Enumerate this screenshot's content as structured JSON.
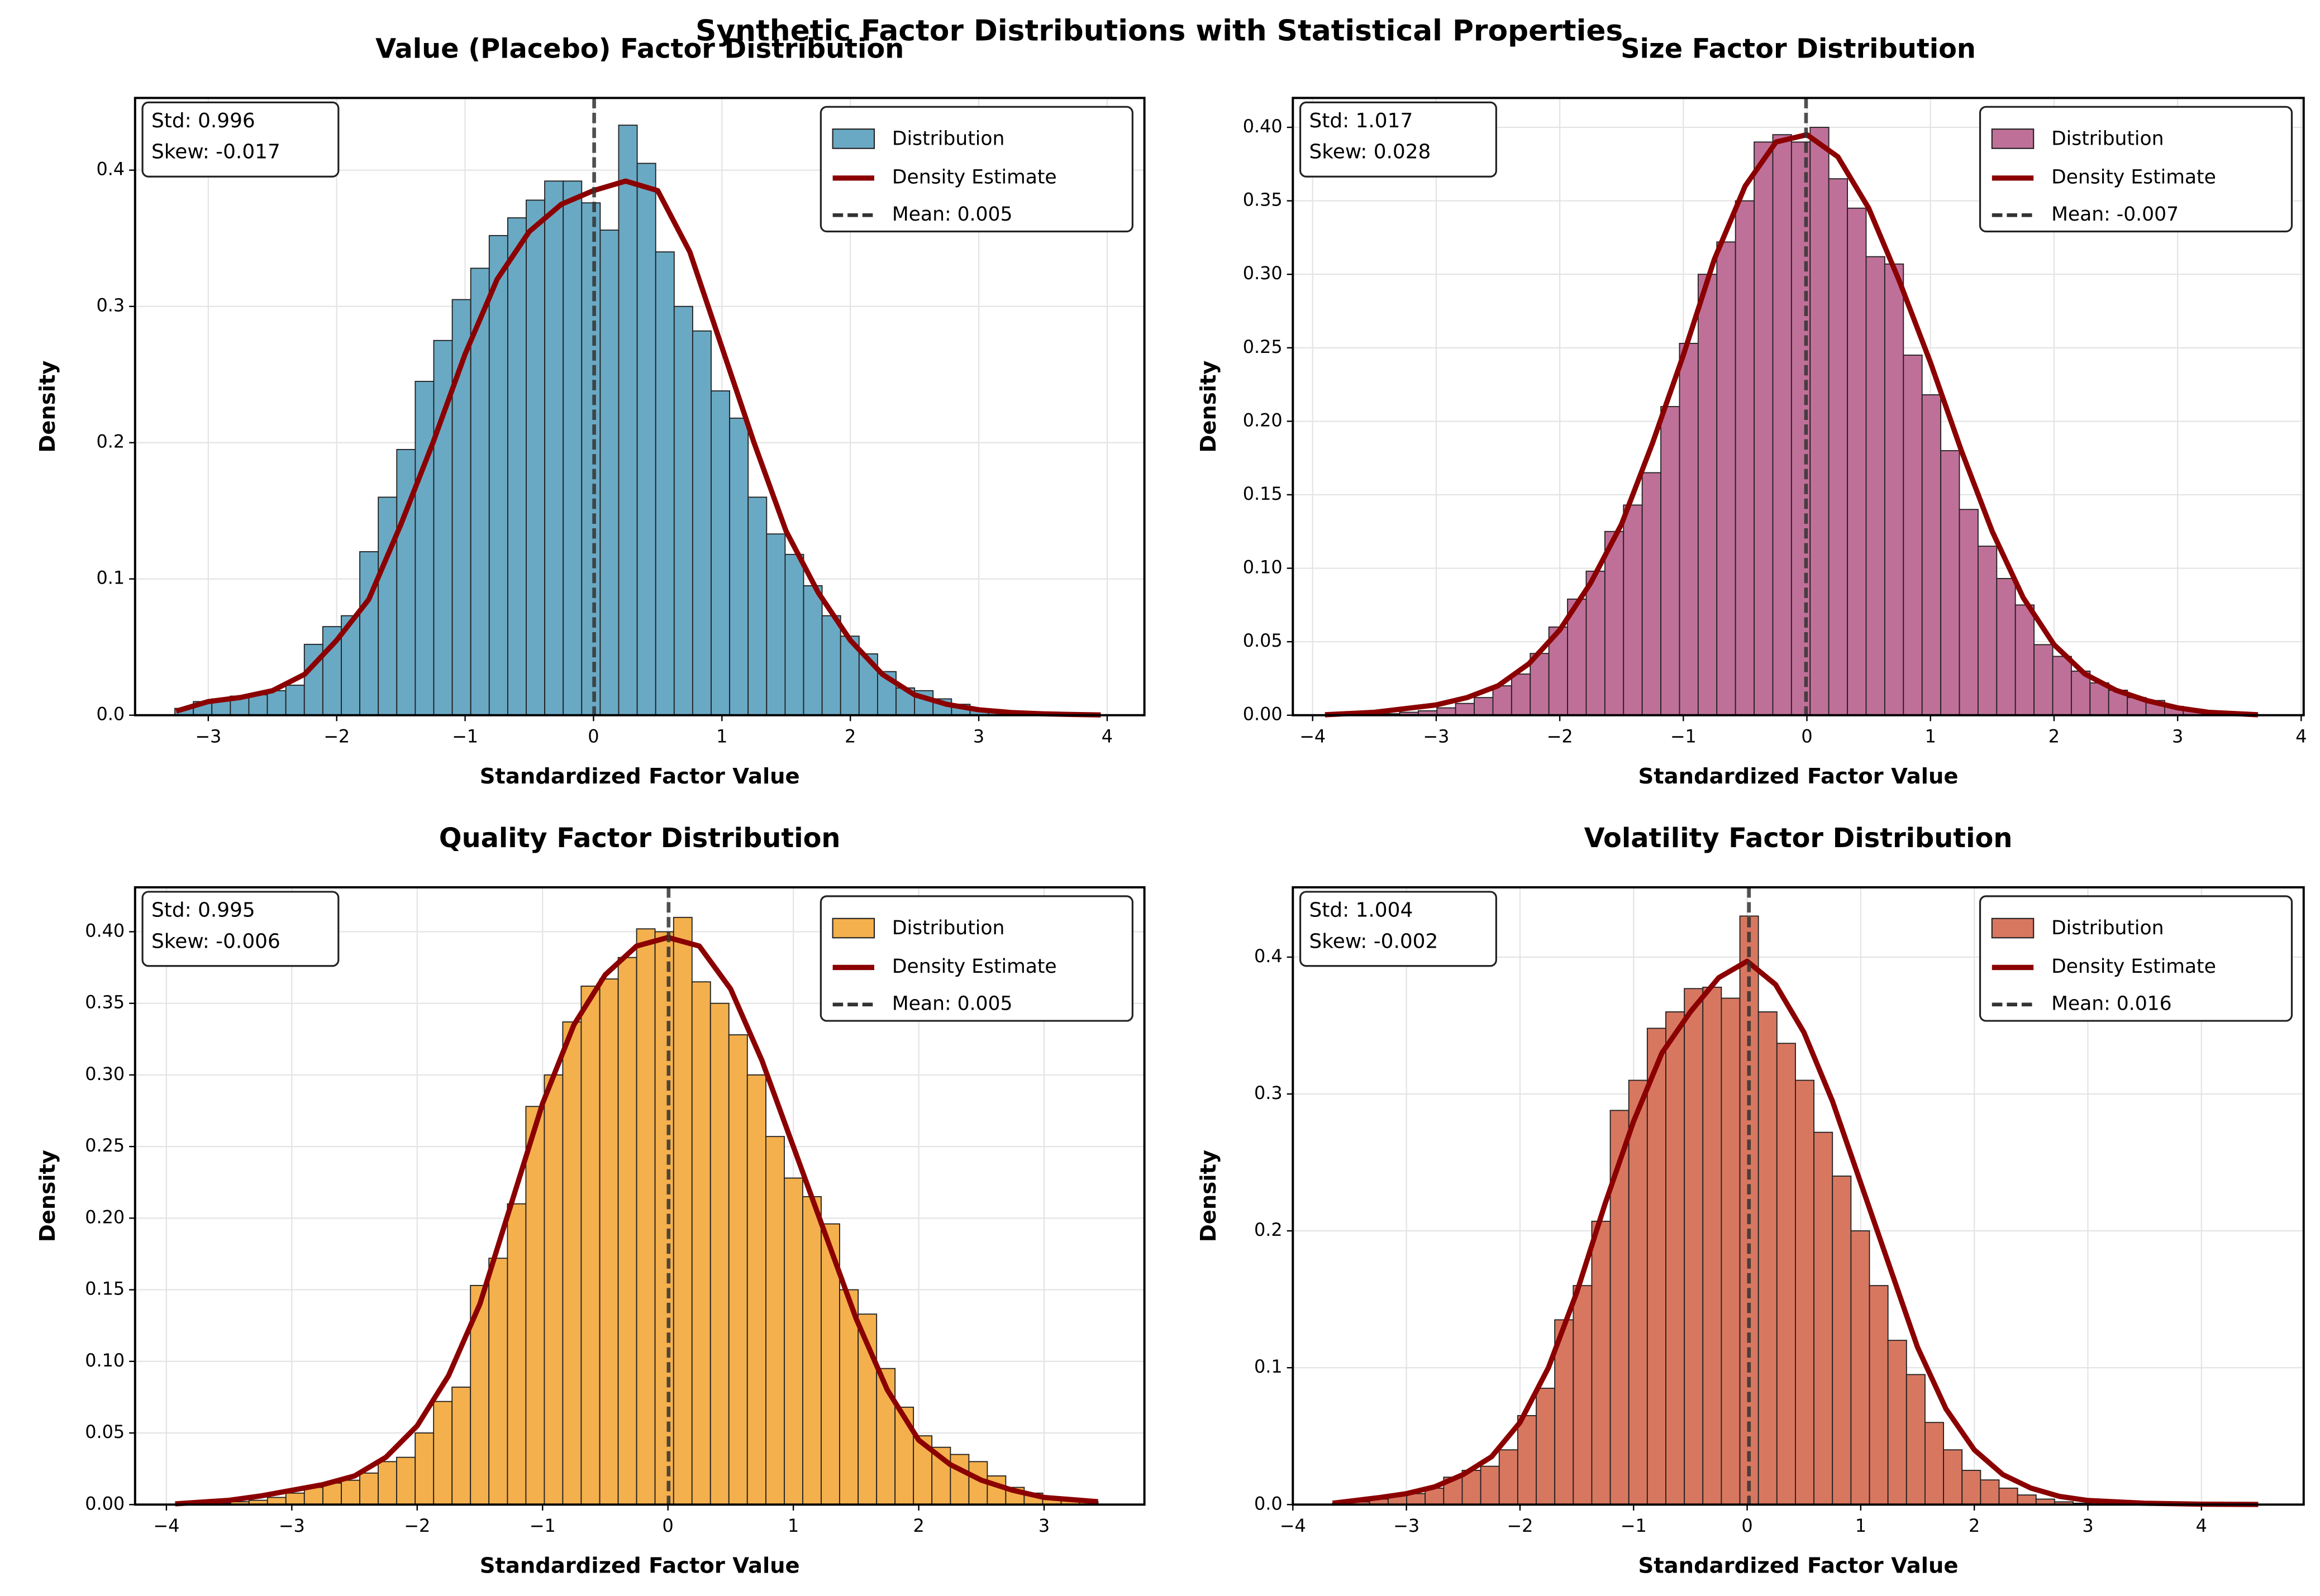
{
  "title": "Synthetic Factor Distributions with Statistical Properties",
  "chart_data": [
    {
      "type": "histogram",
      "title": "Value (Placebo) Factor Distribution",
      "xlabel": "Standardized Factor Value",
      "ylabel": "Density",
      "name": "Distribution",
      "color": "#6aa9c4",
      "bins": [
        -3.26,
        -3.116,
        -2.972,
        -2.828,
        -2.684,
        -2.54,
        -2.396,
        -2.252,
        -2.108,
        -1.964,
        -1.82,
        -1.676,
        -1.532,
        -1.388,
        -1.244,
        -1.1,
        -0.956,
        -0.812,
        -0.668,
        -0.524,
        -0.38,
        -0.236,
        -0.092,
        0.052,
        0.196,
        0.34,
        0.484,
        0.628,
        0.772,
        0.916,
        1.06,
        1.204,
        1.348,
        1.492,
        1.636,
        1.78,
        1.924,
        2.068,
        2.212,
        2.356,
        2.5,
        2.644,
        2.788,
        2.932,
        3.076,
        3.22,
        3.364,
        3.508,
        3.652,
        3.796,
        3.94
      ],
      "values": [
        0.005,
        0.01,
        0.012,
        0.014,
        0.015,
        0.018,
        0.022,
        0.052,
        0.065,
        0.073,
        0.12,
        0.16,
        0.195,
        0.245,
        0.275,
        0.305,
        0.328,
        0.352,
        0.365,
        0.378,
        0.392,
        0.392,
        0.376,
        0.356,
        0.433,
        0.405,
        0.34,
        0.3,
        0.282,
        0.238,
        0.218,
        0.16,
        0.133,
        0.118,
        0.095,
        0.073,
        0.058,
        0.045,
        0.032,
        0.02,
        0.018,
        0.012,
        0.008,
        0.004,
        0.002,
        0.001,
        0.001,
        0,
        0.001,
        0.001
      ],
      "density": {
        "name": "Density Estimate",
        "color": "#8b0000",
        "x": [
          -3.25,
          -3,
          -2.75,
          -2.5,
          -2.25,
          -2,
          -1.75,
          -1.5,
          -1.25,
          -1,
          -0.75,
          -0.5,
          -0.25,
          0,
          0.25,
          0.5,
          0.75,
          1,
          1.25,
          1.5,
          1.75,
          2,
          2.25,
          2.5,
          2.75,
          3,
          3.25,
          3.5,
          3.75,
          3.95
        ],
        "values": [
          0.003,
          0.01,
          0.013,
          0.018,
          0.03,
          0.055,
          0.085,
          0.14,
          0.2,
          0.265,
          0.32,
          0.355,
          0.375,
          0.385,
          0.392,
          0.385,
          0.34,
          0.27,
          0.2,
          0.135,
          0.09,
          0.055,
          0.03,
          0.015,
          0.008,
          0.004,
          0.002,
          0.001,
          0.0005,
          0.0002
        ]
      },
      "mean": {
        "value": 0.005,
        "label": "Mean: 0.005",
        "color": "#333333"
      },
      "stats": [
        "Std: 0.996",
        "Skew: -0.017"
      ],
      "xlim": [
        -3.57,
        4.29
      ],
      "ylim": [
        0,
        0.453
      ],
      "xticks": [
        {
          "value": -3,
          "label": "−3"
        },
        {
          "value": -2,
          "label": "−2"
        },
        {
          "value": -1,
          "label": "−1"
        },
        0,
        1,
        2,
        3,
        4
      ],
      "yticks": [
        {
          "value": 0,
          "label": "0.0"
        },
        0.1,
        0.2,
        0.3,
        0.4
      ],
      "grid": true,
      "legend": "upper right"
    },
    {
      "type": "histogram",
      "title": "Size Factor Distribution",
      "xlabel": "Standardized Factor Value",
      "ylabel": "Density",
      "name": "Distribution",
      "color": "#bf7099",
      "bins": [
        -3.9,
        -3.749,
        -3.598,
        -3.447,
        -3.296,
        -3.145,
        -2.994,
        -2.843,
        -2.692,
        -2.541,
        -2.39,
        -2.239,
        -2.088,
        -1.937,
        -1.786,
        -1.635,
        -1.484,
        -1.333,
        -1.182,
        -1.031,
        -0.88,
        -0.729,
        -0.578,
        -0.427,
        -0.276,
        -0.125,
        0.026,
        0.177,
        0.328,
        0.479,
        0.63,
        0.781,
        0.932,
        1.083,
        1.234,
        1.385,
        1.536,
        1.687,
        1.838,
        1.989,
        2.14,
        2.291,
        2.442,
        2.593,
        2.744,
        2.895,
        3.046,
        3.197,
        3.348,
        3.499,
        3.65
      ],
      "values": [
        0.0003,
        0.0005,
        0.001,
        0.001,
        0.002,
        0.003,
        0.005,
        0.008,
        0.012,
        0.02,
        0.028,
        0.042,
        0.06,
        0.079,
        0.098,
        0.125,
        0.143,
        0.165,
        0.21,
        0.253,
        0.3,
        0.322,
        0.35,
        0.39,
        0.395,
        0.39,
        0.4,
        0.365,
        0.345,
        0.312,
        0.307,
        0.245,
        0.218,
        0.18,
        0.14,
        0.115,
        0.093,
        0.075,
        0.048,
        0.04,
        0.03,
        0.022,
        0.017,
        0.012,
        0.01,
        0.006,
        0.003,
        0.002,
        0.001,
        0.0005
      ],
      "density": {
        "name": "Density Estimate",
        "color": "#8b0000",
        "x": [
          -3.9,
          -3.5,
          -3,
          -2.75,
          -2.5,
          -2.25,
          -2,
          -1.75,
          -1.5,
          -1.25,
          -1,
          -0.75,
          -0.5,
          -0.25,
          0,
          0.25,
          0.5,
          0.75,
          1,
          1.25,
          1.5,
          1.75,
          2,
          2.25,
          2.5,
          2.75,
          3,
          3.25,
          3.65
        ],
        "values": [
          0.0003,
          0.002,
          0.007,
          0.012,
          0.02,
          0.035,
          0.058,
          0.09,
          0.13,
          0.185,
          0.245,
          0.31,
          0.36,
          0.39,
          0.395,
          0.38,
          0.345,
          0.295,
          0.24,
          0.18,
          0.125,
          0.08,
          0.048,
          0.028,
          0.017,
          0.01,
          0.005,
          0.002,
          0.0003
        ]
      },
      "mean": {
        "value": -0.007,
        "label": "Mean: -0.007",
        "color": "#333333"
      },
      "stats": [
        "Std: 1.017",
        "Skew: 0.028"
      ],
      "xlim": [
        -4.16,
        4.02
      ],
      "ylim": [
        0,
        0.42
      ],
      "xticks": [
        {
          "value": -4,
          "label": "−4"
        },
        {
          "value": -3,
          "label": "−3"
        },
        {
          "value": -2,
          "label": "−2"
        },
        {
          "value": -1,
          "label": "−1"
        },
        0,
        1,
        2,
        3,
        4
      ],
      "yticks": [
        {
          "value": 0,
          "label": "0.00"
        },
        0.05,
        {
          "value": 0.1,
          "label": "0.10"
        },
        0.15,
        {
          "value": 0.2,
          "label": "0.20"
        },
        0.25,
        {
          "value": 0.3,
          "label": "0.30"
        },
        0.35,
        {
          "value": 0.4,
          "label": "0.40"
        }
      ],
      "grid": true,
      "legend": "upper right"
    },
    {
      "type": "histogram",
      "title": "Quality Factor Distribution",
      "xlabel": "Standardized Factor Value",
      "ylabel": "Density",
      "name": "Distribution",
      "color": "#f4b04d",
      "bins": [
        -3.93,
        -3.783,
        -3.636,
        -3.488,
        -3.341,
        -3.194,
        -3.047,
        -2.9,
        -2.752,
        -2.605,
        -2.458,
        -2.311,
        -2.164,
        -2.016,
        -1.869,
        -1.722,
        -1.575,
        -1.428,
        -1.28,
        -1.133,
        -0.986,
        -0.839,
        -0.692,
        -0.544,
        -0.397,
        -0.25,
        -0.103,
        0.045,
        0.192,
        0.339,
        0.486,
        0.633,
        0.781,
        0.928,
        1.075,
        1.222,
        1.369,
        1.517,
        1.664,
        1.811,
        1.958,
        2.105,
        2.253,
        2.4,
        2.547,
        2.694,
        2.841,
        2.989,
        3.136,
        3.283,
        3.43
      ],
      "values": [
        0.0005,
        0.001,
        0.001,
        0.002,
        0.003,
        0.005,
        0.008,
        0.012,
        0.015,
        0.017,
        0.022,
        0.03,
        0.033,
        0.05,
        0.072,
        0.082,
        0.153,
        0.172,
        0.21,
        0.278,
        0.3,
        0.337,
        0.362,
        0.367,
        0.382,
        0.402,
        0.4,
        0.41,
        0.365,
        0.35,
        0.328,
        0.3,
        0.257,
        0.228,
        0.215,
        0.196,
        0.15,
        0.133,
        0.095,
        0.068,
        0.048,
        0.04,
        0.035,
        0.03,
        0.02,
        0.012,
        0.008,
        0.005,
        0.003,
        0.002
      ],
      "density": {
        "name": "Density Estimate",
        "color": "#8b0000",
        "x": [
          -3.93,
          -3.5,
          -3.25,
          -3,
          -2.75,
          -2.5,
          -2.25,
          -2,
          -1.75,
          -1.5,
          -1.25,
          -1,
          -0.75,
          -0.5,
          -0.25,
          0,
          0.25,
          0.5,
          0.75,
          1,
          1.25,
          1.5,
          1.75,
          2,
          2.25,
          2.5,
          2.75,
          3,
          3.43
        ],
        "values": [
          0.0005,
          0.003,
          0.006,
          0.01,
          0.014,
          0.02,
          0.033,
          0.055,
          0.09,
          0.14,
          0.21,
          0.28,
          0.335,
          0.37,
          0.39,
          0.396,
          0.39,
          0.36,
          0.31,
          0.25,
          0.19,
          0.13,
          0.08,
          0.045,
          0.028,
          0.017,
          0.01,
          0.005,
          0.002
        ]
      },
      "mean": {
        "value": 0.005,
        "label": "Mean: 0.005",
        "color": "#333333"
      },
      "stats": [
        "Std: 0.995",
        "Skew: -0.006"
      ],
      "xlim": [
        -4.25,
        3.8
      ],
      "ylim": [
        0,
        0.431
      ],
      "xticks": [
        {
          "value": -4,
          "label": "−4"
        },
        {
          "value": -3,
          "label": "−3"
        },
        {
          "value": -2,
          "label": "−2"
        },
        {
          "value": -1,
          "label": "−1"
        },
        0,
        1,
        2,
        3
      ],
      "yticks": [
        {
          "value": 0,
          "label": "0.00"
        },
        0.05,
        {
          "value": 0.1,
          "label": "0.10"
        },
        0.15,
        {
          "value": 0.2,
          "label": "0.20"
        },
        0.25,
        {
          "value": 0.3,
          "label": "0.30"
        },
        0.35,
        {
          "value": 0.4,
          "label": "0.40"
        }
      ],
      "grid": true,
      "legend": "upper right"
    },
    {
      "type": "histogram",
      "title": "Volatility Factor Distribution",
      "xlabel": "Standardized Factor Value",
      "ylabel": "Density",
      "name": "Distribution",
      "color": "#d87760",
      "bins": [
        -3.65,
        -3.487,
        -3.324,
        -3.161,
        -2.998,
        -2.835,
        -2.672,
        -2.509,
        -2.346,
        -2.183,
        -2.02,
        -1.857,
        -1.694,
        -1.531,
        -1.368,
        -1.205,
        -1.042,
        -0.879,
        -0.716,
        -0.553,
        -0.39,
        -0.227,
        -0.064,
        0.099,
        0.262,
        0.425,
        0.588,
        0.751,
        0.914,
        1.077,
        1.24,
        1.403,
        1.566,
        1.729,
        1.892,
        2.055,
        2.218,
        2.381,
        2.544,
        2.707,
        2.87,
        3.033,
        3.196,
        3.359,
        3.522,
        3.685,
        3.848,
        4.011,
        4.174,
        4.337,
        4.5
      ],
      "values": [
        0.001,
        0.002,
        0.004,
        0.007,
        0.008,
        0.012,
        0.02,
        0.025,
        0.028,
        0.04,
        0.065,
        0.085,
        0.135,
        0.16,
        0.207,
        0.288,
        0.31,
        0.348,
        0.36,
        0.377,
        0.378,
        0.37,
        0.43,
        0.36,
        0.337,
        0.31,
        0.272,
        0.24,
        0.2,
        0.16,
        0.12,
        0.095,
        0.06,
        0.04,
        0.025,
        0.018,
        0.012,
        0.007,
        0.004,
        0.002,
        0.001,
        0.0005,
        0.0005,
        0.0003,
        0.0003,
        0.0002,
        0.0002,
        0.0001,
        0.0001,
        0.0001
      ],
      "density": {
        "name": "Density Estimate",
        "color": "#8b0000",
        "x": [
          -3.65,
          -3.25,
          -3,
          -2.75,
          -2.5,
          -2.25,
          -2,
          -1.75,
          -1.5,
          -1.25,
          -1,
          -0.75,
          -0.5,
          -0.25,
          0,
          0.25,
          0.5,
          0.75,
          1,
          1.25,
          1.5,
          1.75,
          2,
          2.25,
          2.5,
          2.75,
          3,
          3.5,
          4,
          4.5
        ],
        "values": [
          0.001,
          0.005,
          0.008,
          0.013,
          0.022,
          0.035,
          0.06,
          0.1,
          0.155,
          0.22,
          0.28,
          0.33,
          0.36,
          0.385,
          0.397,
          0.38,
          0.345,
          0.295,
          0.235,
          0.175,
          0.115,
          0.07,
          0.04,
          0.022,
          0.012,
          0.006,
          0.003,
          0.001,
          0.0003,
          0.0001
        ]
      },
      "mean": {
        "value": 0.016,
        "label": "Mean: 0.016",
        "color": "#333333"
      },
      "stats": [
        "Std: 1.004",
        "Skew: -0.002"
      ],
      "xlim": [
        -4.0,
        4.9
      ],
      "ylim": [
        0,
        0.451
      ],
      "xticks": [
        {
          "value": -4,
          "label": "−4"
        },
        {
          "value": -3,
          "label": "−3"
        },
        {
          "value": -2,
          "label": "−2"
        },
        {
          "value": -1,
          "label": "−1"
        },
        0,
        1,
        2,
        3,
        4
      ],
      "yticks": [
        {
          "value": 0,
          "label": "0.0"
        },
        0.1,
        0.2,
        0.3,
        0.4
      ],
      "grid": true,
      "legend": "upper right"
    }
  ]
}
